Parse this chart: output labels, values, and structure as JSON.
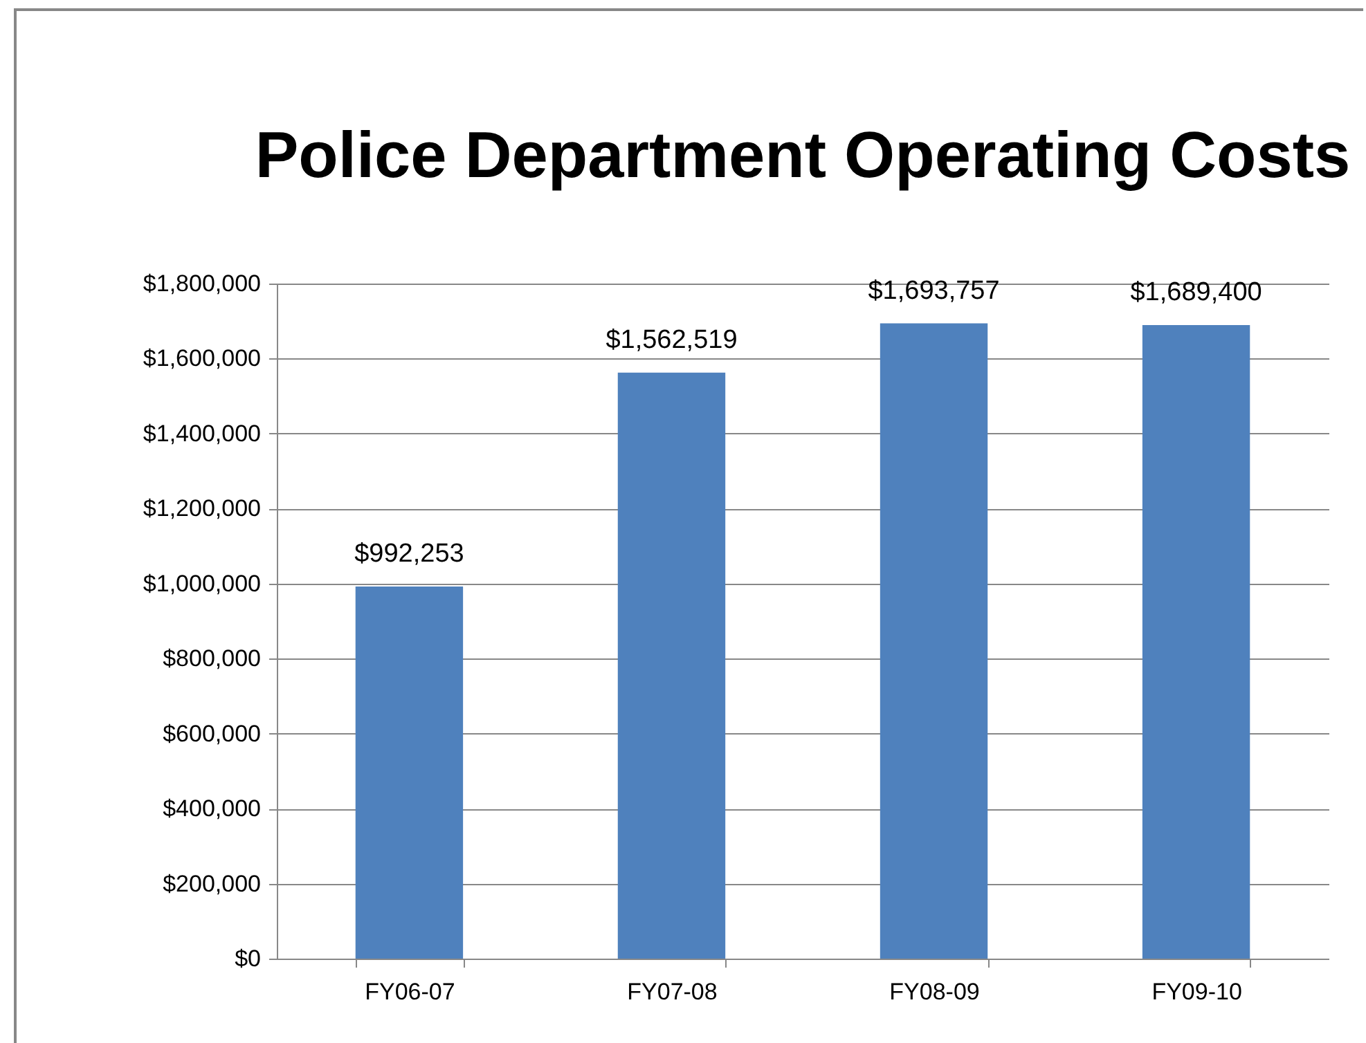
{
  "chart_data": {
    "type": "bar",
    "title": "Police Department Operating Costs",
    "categories": [
      "FY06-07",
      "FY07-08",
      "FY08-09",
      "FY09-10"
    ],
    "values": [
      992253,
      1562519,
      1693757,
      1689400
    ],
    "value_labels": [
      "$992,253",
      "$1,562,519",
      "$1,693,757",
      "$1,689,400"
    ],
    "color": "#4f81bd",
    "ylim": [
      0,
      1800000
    ],
    "yticks": [
      {
        "value": 0,
        "label": "$0"
      },
      {
        "value": 200000,
        "label": "$200,000"
      },
      {
        "value": 400000,
        "label": "$400,000"
      },
      {
        "value": 600000,
        "label": "$600,000"
      },
      {
        "value": 800000,
        "label": "$800,000"
      },
      {
        "value": 1000000,
        "label": "$1,000,000"
      },
      {
        "value": 1200000,
        "label": "$1,200,000"
      },
      {
        "value": 1400000,
        "label": "$1,400,000"
      },
      {
        "value": 1600000,
        "label": "$1,600,000"
      },
      {
        "value": 1800000,
        "label": "$1,800,000"
      }
    ],
    "grid": "y"
  }
}
